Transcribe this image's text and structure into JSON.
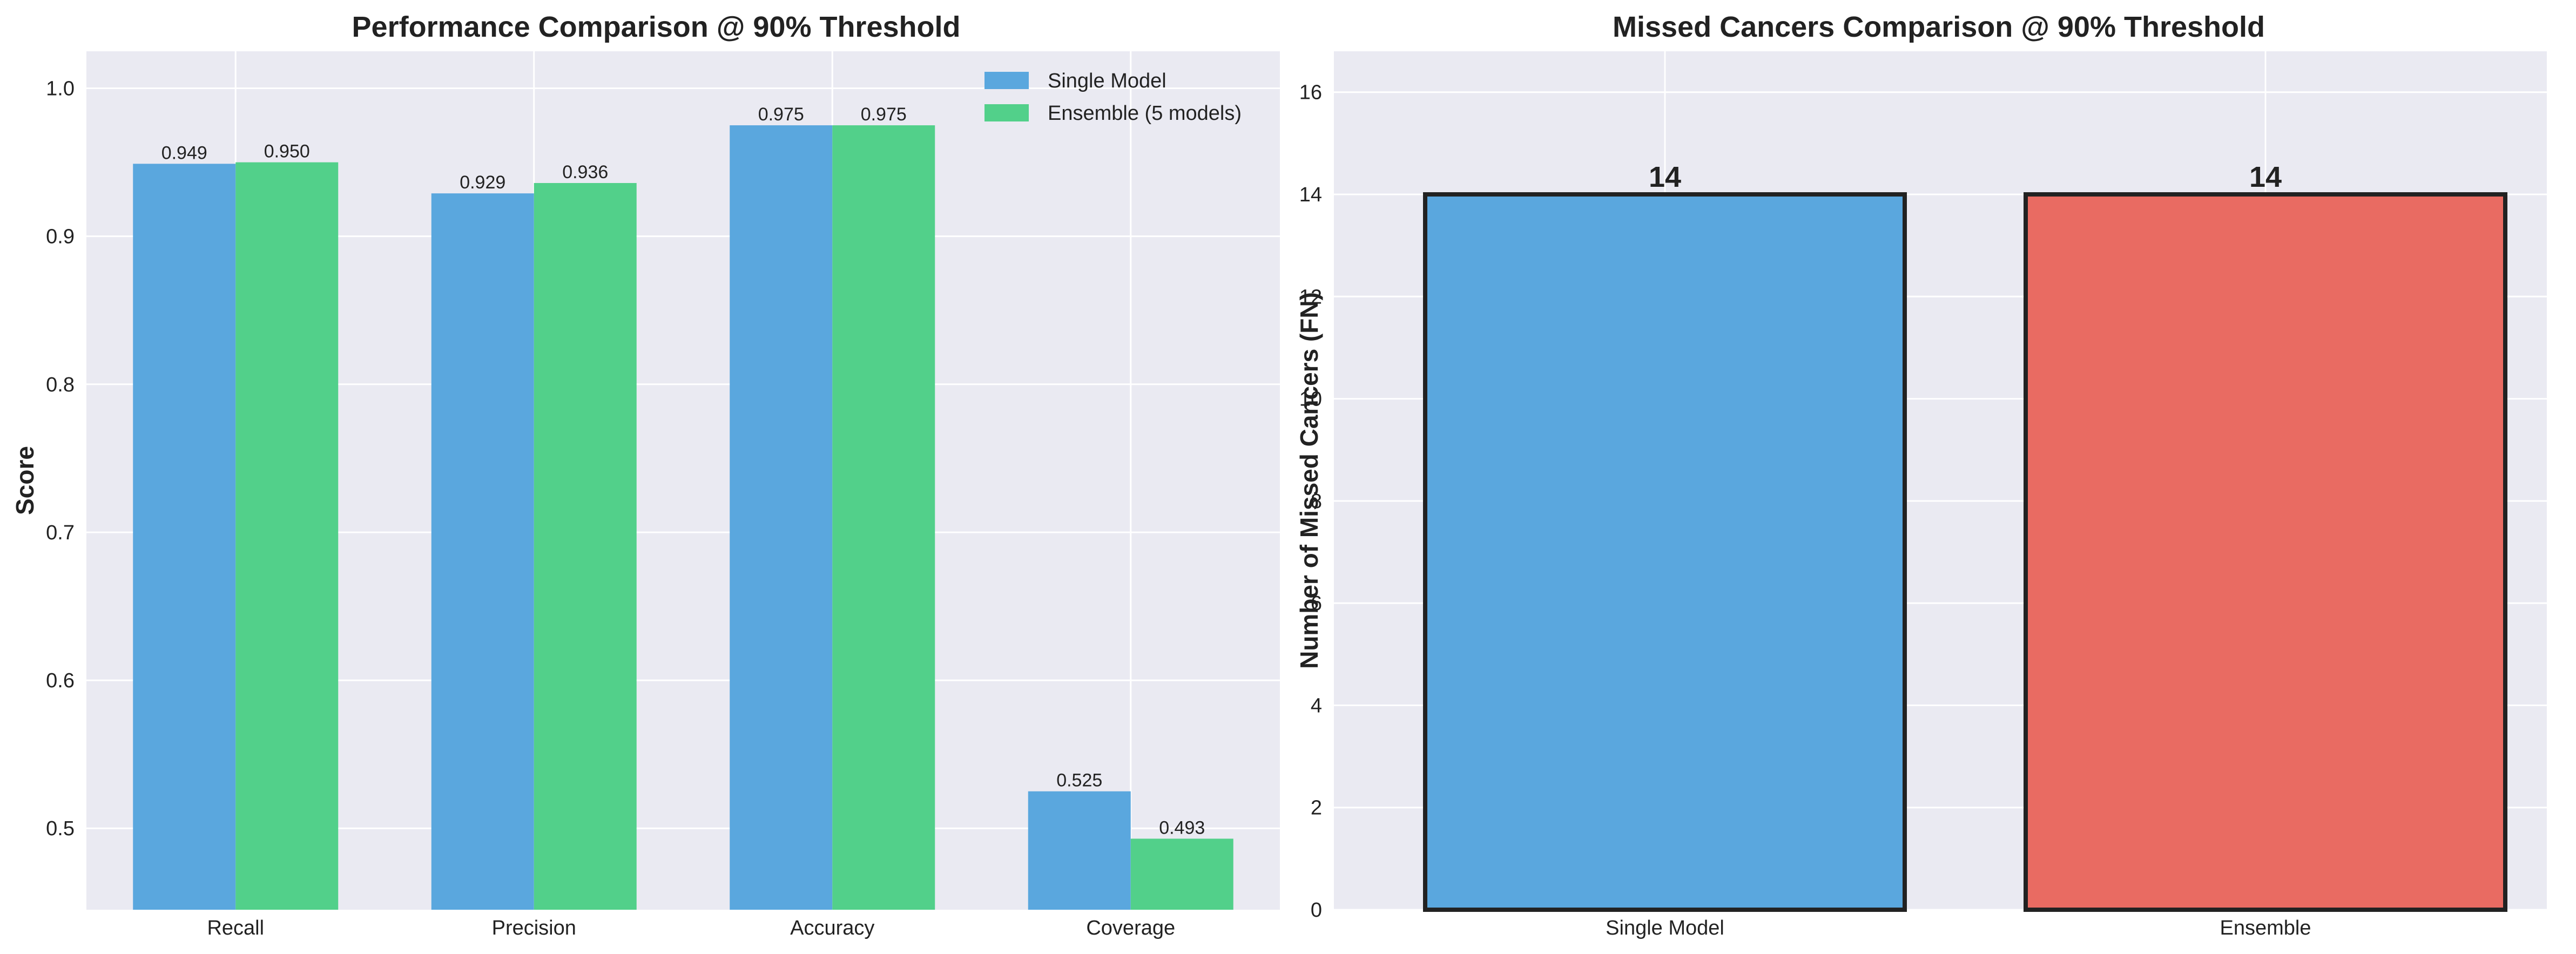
{
  "chart_data": [
    {
      "type": "bar",
      "title": "Performance Comparison @ 90% Threshold",
      "xlabel": "",
      "ylabel": "Score",
      "categories": [
        "Recall",
        "Precision",
        "Accuracy",
        "Coverage"
      ],
      "series": [
        {
          "name": "Single Model",
          "color": "#5aa7de",
          "values": [
            0.949,
            0.929,
            0.975,
            0.525
          ],
          "labels": [
            "0.949",
            "0.929",
            "0.975",
            "0.525"
          ]
        },
        {
          "name": "Ensemble (5 models)",
          "color": "#52d08a",
          "values": [
            0.95,
            0.936,
            0.975,
            0.493
          ],
          "labels": [
            "0.950",
            "0.936",
            "0.975",
            "0.493"
          ]
        }
      ],
      "ylim": [
        0.445,
        1.025
      ],
      "yticks": [
        0.5,
        0.6,
        0.7,
        0.8,
        0.9,
        1.0
      ],
      "ytick_labels": [
        "0.5",
        "0.6",
        "0.7",
        "0.8",
        "0.9",
        "1.0"
      ],
      "legend": "top-right",
      "grid": true,
      "background": "#eaeaf2"
    },
    {
      "type": "bar",
      "title": "Missed Cancers Comparison @ 90% Threshold",
      "xlabel": "",
      "ylabel": "Number of Missed Cancers (FN)",
      "categories": [
        "Single Model",
        "Ensemble"
      ],
      "values": [
        14,
        14
      ],
      "labels": [
        "14",
        "14"
      ],
      "colors": [
        "#5aa7de",
        "#e96b62"
      ],
      "edge_color": "#222222",
      "ylim": [
        0,
        16.8
      ],
      "yticks": [
        0,
        2,
        4,
        6,
        8,
        10,
        12,
        14,
        16
      ],
      "ytick_labels": [
        "0",
        "2",
        "4",
        "6",
        "8",
        "10",
        "12",
        "14",
        "16"
      ],
      "grid": true,
      "background": "#eaeaf2"
    }
  ]
}
